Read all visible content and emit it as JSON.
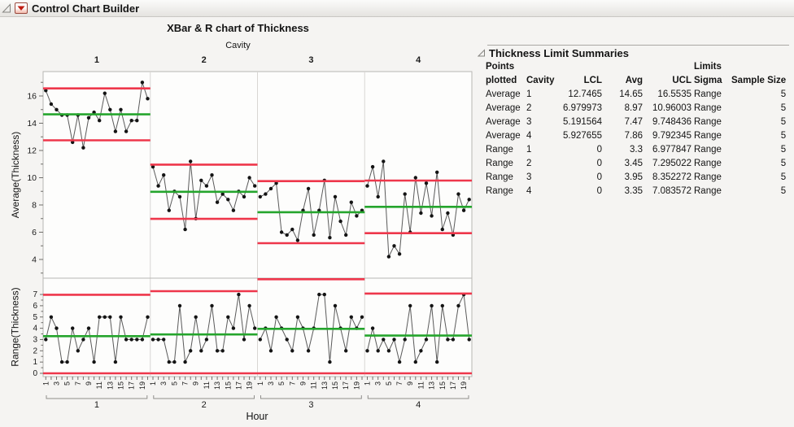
{
  "window": {
    "title": "Control Chart Builder"
  },
  "chart_data": {
    "type": "line",
    "subtype": "xbar-r-control-chart",
    "title": "XBar & R chart of Thickness",
    "group_label": "Cavity",
    "xlabel": "Hour",
    "hours_per_cavity": 20,
    "hour_tick_labels": [
      "1",
      "3",
      "5",
      "7",
      "9",
      "11",
      "13",
      "15",
      "17",
      "19"
    ],
    "legend": "none",
    "grid": "off",
    "panels": [
      {
        "name": "Average",
        "ylabel": "Average(Thickness)",
        "ylim": [
          2.6,
          17.8
        ],
        "yticks_major": [
          4,
          6,
          8,
          10,
          12,
          14,
          16
        ],
        "series": [
          {
            "cavity": "1",
            "lcl": 12.7465,
            "center": 14.65,
            "ucl": 16.5535,
            "values": [
              16.4,
              15.4,
              15.0,
              14.6,
              14.6,
              12.6,
              14.6,
              12.2,
              14.4,
              14.8,
              14.2,
              16.2,
              15.0,
              13.4,
              15.0,
              13.4,
              14.2,
              14.2,
              17.0,
              15.8
            ]
          },
          {
            "cavity": "2",
            "lcl": 6.979973,
            "center": 8.97,
            "ucl": 10.96003,
            "values": [
              10.8,
              9.4,
              10.2,
              7.6,
              9.0,
              8.6,
              6.2,
              11.2,
              7.0,
              9.8,
              9.4,
              10.2,
              8.2,
              8.8,
              8.4,
              7.6,
              9.0,
              8.6,
              10.0,
              9.4
            ]
          },
          {
            "cavity": "3",
            "lcl": 5.191564,
            "center": 7.47,
            "ucl": 9.748436,
            "values": [
              8.6,
              8.8,
              9.2,
              9.6,
              6.0,
              5.8,
              6.2,
              5.4,
              7.6,
              9.2,
              5.8,
              7.6,
              9.8,
              5.6,
              8.6,
              6.8,
              5.8,
              8.2,
              7.2,
              7.6
            ]
          },
          {
            "cavity": "4",
            "lcl": 5.927655,
            "center": 7.86,
            "ucl": 9.792345,
            "values": [
              9.4,
              10.8,
              8.6,
              11.2,
              4.2,
              5.0,
              4.4,
              8.8,
              6.0,
              10.0,
              7.4,
              9.6,
              7.2,
              10.4,
              6.2,
              7.4,
              5.8,
              8.8,
              7.6,
              8.4
            ]
          }
        ]
      },
      {
        "name": "Range",
        "ylabel": "Range(Thickness)",
        "ylim": [
          -0.35,
          8.45
        ],
        "yticks_major": [
          0,
          1,
          2,
          3,
          4,
          5,
          6,
          7
        ],
        "series": [
          {
            "cavity": "1",
            "lcl": 0,
            "center": 3.3,
            "ucl": 6.977847,
            "values": [
              3,
              5,
              4,
              1,
              1,
              4,
              2,
              3,
              4,
              1,
              5,
              5,
              5,
              1,
              5,
              3,
              3,
              3,
              3,
              5
            ]
          },
          {
            "cavity": "2",
            "lcl": 0,
            "center": 3.45,
            "ucl": 7.295022,
            "values": [
              3,
              3,
              3,
              1,
              1,
              6,
              1,
              2,
              5,
              2,
              3,
              6,
              2,
              2,
              5,
              4,
              7,
              3,
              6,
              4
            ]
          },
          {
            "cavity": "3",
            "lcl": 0,
            "center": 3.95,
            "ucl": 8.352272,
            "values": [
              3,
              4,
              2,
              5,
              4,
              3,
              2,
              5,
              4,
              2,
              4,
              7,
              7,
              1,
              6,
              4,
              2,
              5,
              4,
              5
            ]
          },
          {
            "cavity": "4",
            "lcl": 0,
            "center": 3.35,
            "ucl": 7.083572,
            "values": [
              2,
              4,
              2,
              3,
              2,
              3,
              1,
              3,
              6,
              1,
              2,
              3,
              6,
              1,
              6,
              3,
              3,
              6,
              7,
              3
            ]
          }
        ]
      }
    ],
    "styles": {
      "limit_color": "#ee374b",
      "center_color": "#25a52d",
      "point_color": "#141414",
      "connector_color": "#5a5a5a"
    }
  },
  "summary_panel": {
    "title": "Thickness Limit Summaries",
    "header_row1": [
      "Points",
      "",
      "",
      "",
      "",
      "Limits",
      ""
    ],
    "header_row2": [
      "plotted",
      "Cavity",
      "LCL",
      "Avg",
      "UCL",
      "Sigma",
      "Sample Size"
    ],
    "rows": [
      [
        "Average",
        "1",
        "12.7465",
        "14.65",
        "16.5535",
        "Range",
        "5"
      ],
      [
        "Average",
        "2",
        "6.979973",
        "8.97",
        "10.96003",
        "Range",
        "5"
      ],
      [
        "Average",
        "3",
        "5.191564",
        "7.47",
        "9.748436",
        "Range",
        "5"
      ],
      [
        "Average",
        "4",
        "5.927655",
        "7.86",
        "9.792345",
        "Range",
        "5"
      ],
      [
        "Range",
        "1",
        "0",
        "3.3",
        "6.977847",
        "Range",
        "5"
      ],
      [
        "Range",
        "2",
        "0",
        "3.45",
        "7.295022",
        "Range",
        "5"
      ],
      [
        "Range",
        "3",
        "0",
        "3.95",
        "8.352272",
        "Range",
        "5"
      ],
      [
        "Range",
        "4",
        "0",
        "3.35",
        "7.083572",
        "Range",
        "5"
      ]
    ]
  }
}
